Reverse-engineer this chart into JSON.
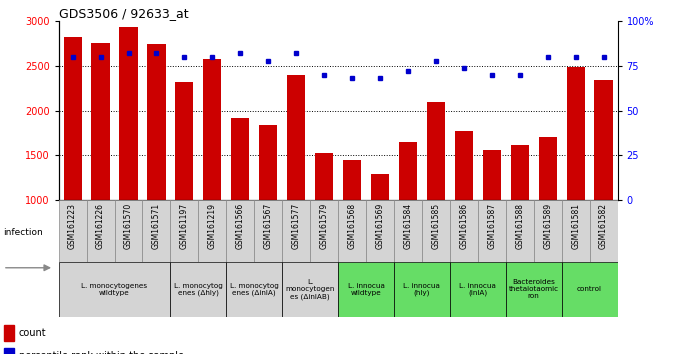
{
  "title": "GDS3506 / 92633_at",
  "samples": [
    "GSM161223",
    "GSM161226",
    "GSM161570",
    "GSM161571",
    "GSM161197",
    "GSM161219",
    "GSM161566",
    "GSM161567",
    "GSM161577",
    "GSM161579",
    "GSM161568",
    "GSM161569",
    "GSM161584",
    "GSM161585",
    "GSM161586",
    "GSM161587",
    "GSM161588",
    "GSM161589",
    "GSM161581",
    "GSM161582"
  ],
  "counts": [
    2820,
    2760,
    2940,
    2740,
    2320,
    2580,
    1920,
    1840,
    2400,
    1530,
    1450,
    1290,
    1650,
    2095,
    1770,
    1560,
    1610,
    1700,
    2490,
    2340
  ],
  "percentiles": [
    80,
    80,
    82,
    82,
    80,
    80,
    82,
    78,
    82,
    70,
    68,
    68,
    72,
    78,
    74,
    70,
    70,
    80,
    80,
    80
  ],
  "groups": [
    {
      "label": "L. monocytogenes\nwildtype",
      "start": 0,
      "end": 4,
      "color": "#d4d4d4"
    },
    {
      "label": "L. monocytog\nenes (Δhly)",
      "start": 4,
      "end": 6,
      "color": "#d4d4d4"
    },
    {
      "label": "L. monocytog\nenes (ΔinlA)",
      "start": 6,
      "end": 8,
      "color": "#d4d4d4"
    },
    {
      "label": "L.\nmonocytogen\nes (ΔinlAB)",
      "start": 8,
      "end": 10,
      "color": "#d4d4d4"
    },
    {
      "label": "L. innocua\nwildtype",
      "start": 10,
      "end": 12,
      "color": "#66dd66"
    },
    {
      "label": "L. innocua\n(hly)",
      "start": 12,
      "end": 14,
      "color": "#66dd66"
    },
    {
      "label": "L. innocua\n(inlA)",
      "start": 14,
      "end": 16,
      "color": "#66dd66"
    },
    {
      "label": "Bacteroides\nthetaiotaomic\nron",
      "start": 16,
      "end": 18,
      "color": "#66dd66"
    },
    {
      "label": "control",
      "start": 18,
      "end": 20,
      "color": "#66dd66"
    }
  ],
  "ylim_left": [
    1000,
    3000
  ],
  "ylim_right": [
    0,
    100
  ],
  "bar_color": "#cc0000",
  "dot_color": "#0000cc",
  "bar_width": 0.65,
  "yticks_left": [
    1000,
    1500,
    2000,
    2500,
    3000
  ],
  "yticks_right": [
    0,
    25,
    50,
    75,
    100
  ],
  "ytick_right_labels": [
    "0",
    "25",
    "50",
    "75",
    "100%"
  ],
  "grid_lines": [
    1500,
    2000,
    2500
  ],
  "xtick_bg": "#d4d4d4"
}
